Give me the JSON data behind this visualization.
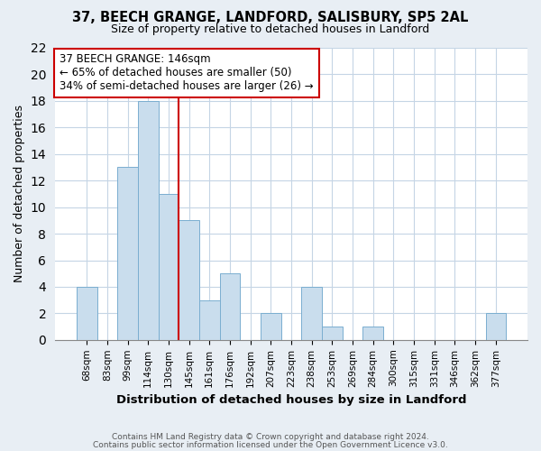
{
  "title": "37, BEECH GRANGE, LANDFORD, SALISBURY, SP5 2AL",
  "subtitle": "Size of property relative to detached houses in Landford",
  "xlabel": "Distribution of detached houses by size in Landford",
  "ylabel": "Number of detached properties",
  "bar_labels": [
    "68sqm",
    "83sqm",
    "99sqm",
    "114sqm",
    "130sqm",
    "145sqm",
    "161sqm",
    "176sqm",
    "192sqm",
    "207sqm",
    "223sqm",
    "238sqm",
    "253sqm",
    "269sqm",
    "284sqm",
    "300sqm",
    "315sqm",
    "331sqm",
    "346sqm",
    "362sqm",
    "377sqm"
  ],
  "bar_values": [
    4,
    0,
    13,
    18,
    11,
    9,
    3,
    5,
    0,
    2,
    0,
    4,
    1,
    0,
    1,
    0,
    0,
    0,
    0,
    0,
    2
  ],
  "bar_color": "#c9dded",
  "bar_edge_color": "#7aaed0",
  "vline_color": "#cc0000",
  "annotation_title": "37 BEECH GRANGE: 146sqm",
  "annotation_line1": "← 65% of detached houses are smaller (50)",
  "annotation_line2": "34% of semi-detached houses are larger (26) →",
  "ylim": [
    0,
    22
  ],
  "yticks": [
    0,
    2,
    4,
    6,
    8,
    10,
    12,
    14,
    16,
    18,
    20,
    22
  ],
  "footer1": "Contains HM Land Registry data © Crown copyright and database right 2024.",
  "footer2": "Contains public sector information licensed under the Open Government Licence v3.0.",
  "bg_color": "#e8eef4",
  "plot_bg_color": "#ffffff",
  "grid_color": "#c5d5e5"
}
